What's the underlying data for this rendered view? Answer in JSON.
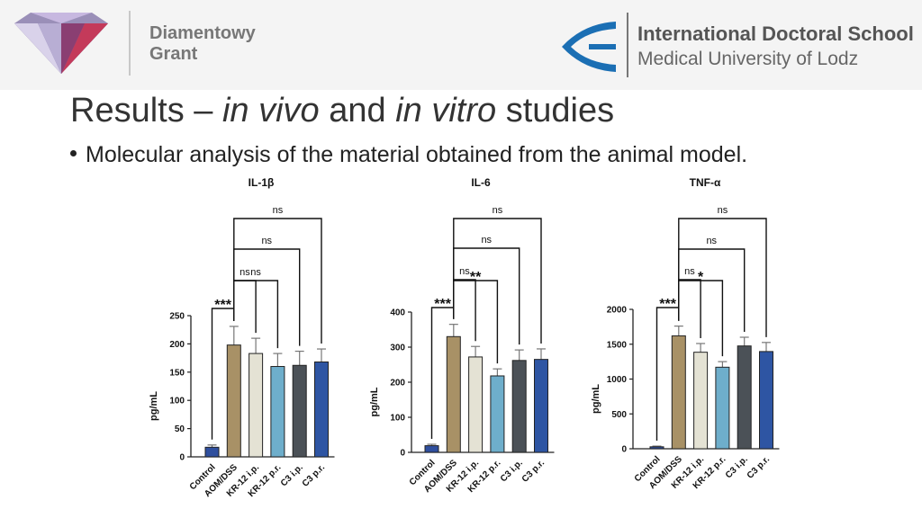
{
  "header": {
    "left_logo_text_line1": "Diamentowy",
    "left_logo_text_line2": "Grant",
    "right_logo_text_line1": "International Doctoral School",
    "right_logo_text_line2": "Medical University of Lodz"
  },
  "slide": {
    "title_part1": "Results – ",
    "title_italic1": "in vivo",
    "title_part2": " and ",
    "title_italic2": "in vitro",
    "title_part3": " studies",
    "bullet": "Molecular analysis of the material obtained from the animal model."
  },
  "colors": {
    "Control": "#2f4f9e",
    "AOM/DSS": "#a89166",
    "KR-12 i.p.": "#e4e2d4",
    "KR-12 p.r.": "#6eaecb",
    "C3 i.p.": "#4b5157",
    "C3 p.r.": "#2e55a3"
  },
  "chart_data": [
    {
      "type": "bar",
      "title": "IL-1β",
      "ylabel": "pg/mL",
      "categories": [
        "Control",
        "AOM/DSS",
        "KR-12 i.p.",
        "KR-12 p.r.",
        "C3 i.p.",
        "C3 p.r."
      ],
      "values": [
        17,
        198,
        183,
        160,
        162,
        168
      ],
      "errors": [
        4,
        33,
        27,
        23,
        25,
        23
      ],
      "ylim": [
        0,
        250
      ],
      "yticks": [
        "0",
        "50",
        "100",
        "150",
        "200",
        "250"
      ],
      "significance": [
        {
          "from": 0,
          "to": 1,
          "label": "***"
        },
        {
          "from": 1,
          "to": 2,
          "label": "ns"
        },
        {
          "from": 1,
          "to": 3,
          "label": "ns"
        },
        {
          "from": 1,
          "to": 4,
          "label": "ns"
        },
        {
          "from": 1,
          "to": 5,
          "label": "ns"
        }
      ]
    },
    {
      "type": "bar",
      "title": "IL-6",
      "ylabel": "pg/mL",
      "categories": [
        "Control",
        "AOM/DSS",
        "KR-12 i.p.",
        "KR-12 p.r.",
        "C3 i.p.",
        "C3 p.r."
      ],
      "values": [
        19,
        330,
        272,
        218,
        262,
        265
      ],
      "errors": [
        4,
        35,
        30,
        20,
        30,
        30
      ],
      "ylim": [
        0,
        400
      ],
      "yticks": [
        "0",
        "100",
        "200",
        "300",
        "400"
      ],
      "significance": [
        {
          "from": 0,
          "to": 1,
          "label": "***"
        },
        {
          "from": 1,
          "to": 2,
          "label": "ns"
        },
        {
          "from": 1,
          "to": 3,
          "label": "**"
        },
        {
          "from": 1,
          "to": 4,
          "label": "ns"
        },
        {
          "from": 1,
          "to": 5,
          "label": "ns"
        }
      ]
    },
    {
      "type": "bar",
      "title": "TNF-α",
      "ylabel": "pg/mL",
      "categories": [
        "Control",
        "AOM/DSS",
        "KR-12 i.p.",
        "KR-12 p.r.",
        "C3 i.p.",
        "C3 p.r."
      ],
      "values": [
        28,
        1620,
        1385,
        1170,
        1475,
        1395
      ],
      "errors": [
        10,
        140,
        125,
        80,
        125,
        130
      ],
      "ylim": [
        0,
        2000
      ],
      "yticks": [
        "0",
        "500",
        "1000",
        "1500",
        "2000"
      ],
      "significance": [
        {
          "from": 0,
          "to": 1,
          "label": "***"
        },
        {
          "from": 1,
          "to": 2,
          "label": "ns"
        },
        {
          "from": 1,
          "to": 3,
          "label": "*"
        },
        {
          "from": 1,
          "to": 4,
          "label": "ns"
        },
        {
          "from": 1,
          "to": 5,
          "label": "ns"
        }
      ]
    }
  ]
}
